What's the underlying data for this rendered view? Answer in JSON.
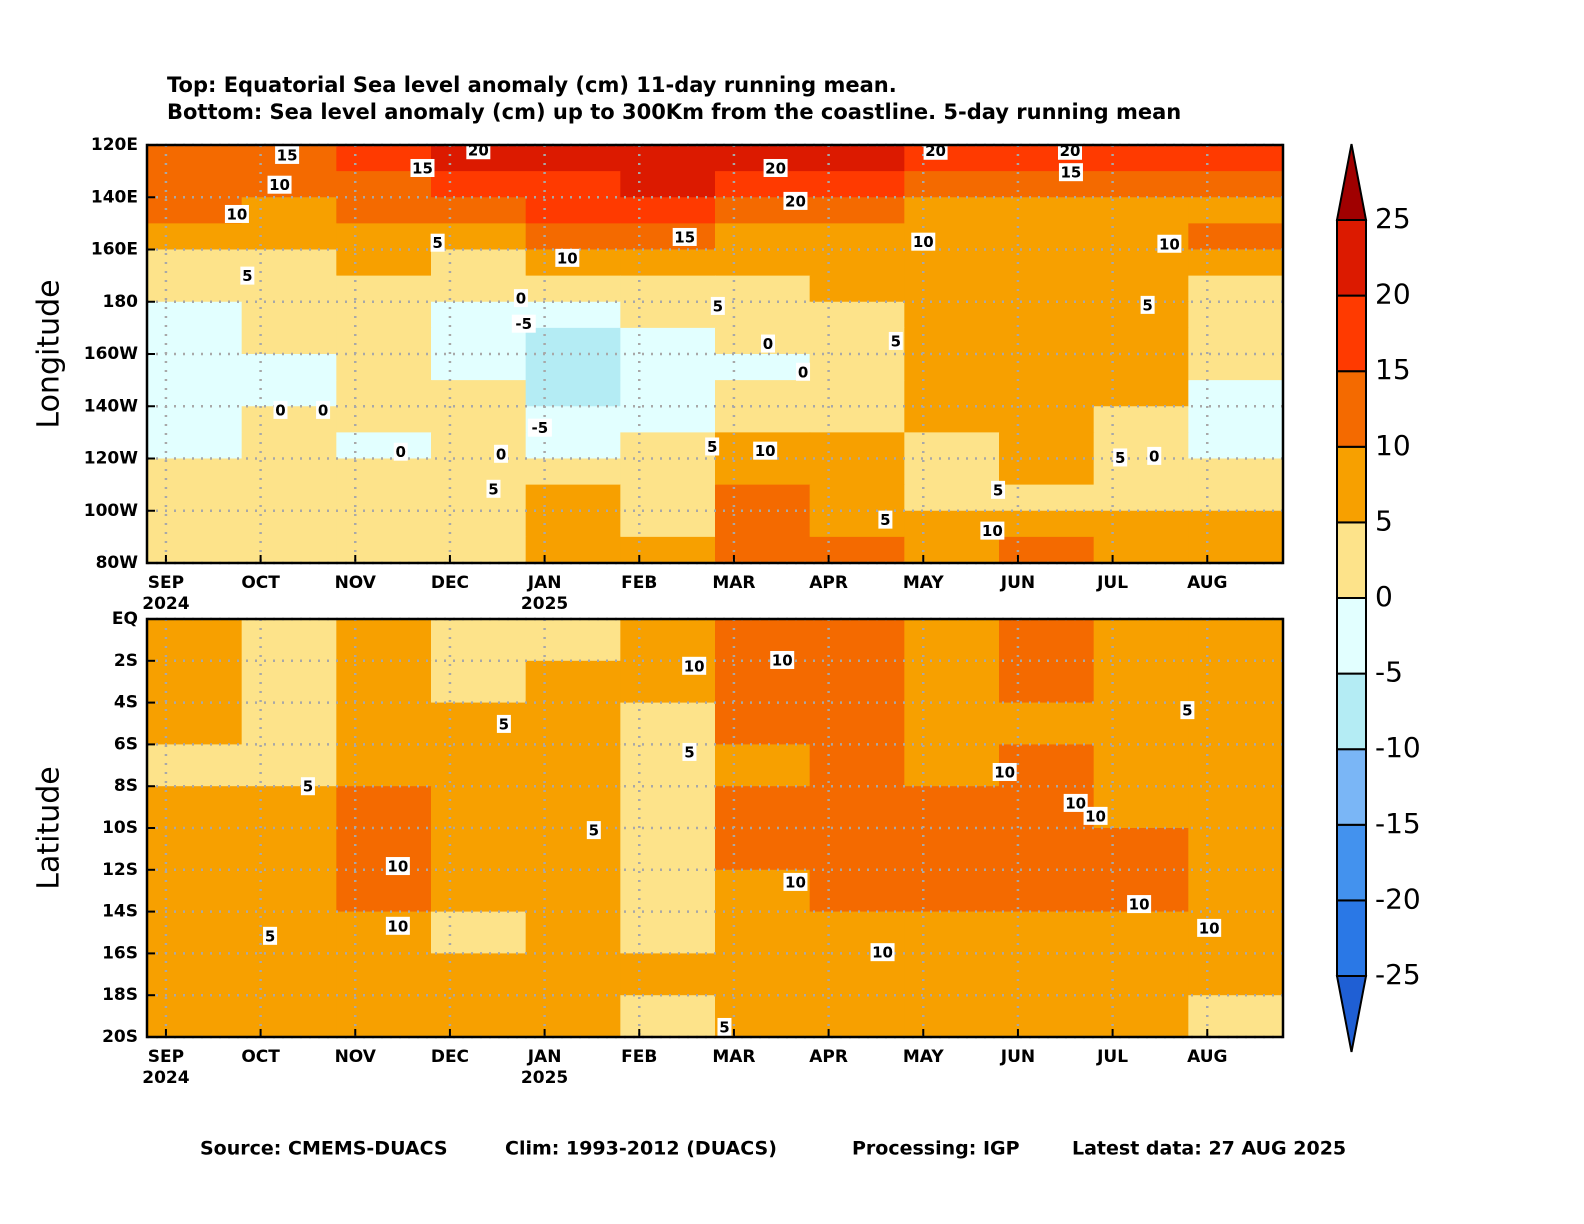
{
  "title_lines": [
    "Top: Equatorial Sea level anomaly (cm) 11-day running mean.",
    "Bottom: Sea level anomaly (cm) up to 300Km from the coastline. 5-day running mean"
  ],
  "footer": [
    "Source: CMEMS-DUACS",
    "Clim: 1993-2012 (DUACS)",
    "Processing: IGP",
    "Latest data: 27 AUG 2025"
  ],
  "chart_data": [
    {
      "type": "heatmap",
      "ylabel": "Longitude",
      "grid": true,
      "xlim": [
        -0.2,
        11.8
      ],
      "ylim": [
        0,
        8
      ],
      "xticks": [
        {
          "value": 0,
          "label": "SEP"
        },
        {
          "value": 1,
          "label": "OCT"
        },
        {
          "value": 2,
          "label": "NOV"
        },
        {
          "value": 3,
          "label": "DEC"
        },
        {
          "value": 4,
          "label": "JAN"
        },
        {
          "value": 5,
          "label": "FEB"
        },
        {
          "value": 6,
          "label": "MAR"
        },
        {
          "value": 7,
          "label": "APR"
        },
        {
          "value": 8,
          "label": "MAY"
        },
        {
          "value": 9,
          "label": "JUN"
        },
        {
          "value": 10,
          "label": "JUL"
        },
        {
          "value": 11,
          "label": "AUG"
        }
      ],
      "year_labels": [
        {
          "value": 0,
          "label": "2024"
        },
        {
          "value": 4,
          "label": "2025"
        }
      ],
      "yticks": [
        {
          "value": 0,
          "label": "120E"
        },
        {
          "value": 1,
          "label": "140E"
        },
        {
          "value": 2,
          "label": "160E"
        },
        {
          "value": 3,
          "label": "180"
        },
        {
          "value": 4,
          "label": "160W"
        },
        {
          "value": 5,
          "label": "140W"
        },
        {
          "value": 6,
          "label": "120W"
        },
        {
          "value": 7,
          "label": "100W"
        },
        {
          "value": 8,
          "label": "80W"
        }
      ],
      "x": [
        0.3,
        1.3,
        2.3,
        3.3,
        4.3,
        5.3,
        6.3,
        7.3,
        8.3,
        9.3,
        10.3,
        11.3
      ],
      "y": [
        0.25,
        0.75,
        1.25,
        1.75,
        2.25,
        2.75,
        3.25,
        3.75,
        4.25,
        4.75,
        5.25,
        5.75,
        6.25,
        6.75,
        7.25,
        7.75
      ],
      "values": [
        [
          14,
          13,
          15,
          20,
          21,
          22,
          21,
          20,
          18,
          17,
          17,
          17
        ],
        [
          11,
          10,
          12,
          15,
          19,
          20,
          18,
          15,
          12,
          12,
          13,
          12
        ],
        [
          12,
          9,
          11,
          12,
          15,
          16,
          14,
          10,
          9,
          9,
          8,
          9
        ],
        [
          7,
          7,
          8,
          8,
          11,
          10,
          9,
          9,
          8,
          8,
          8,
          10
        ],
        [
          3,
          4,
          6,
          4,
          7,
          8,
          6,
          7,
          8,
          8,
          8,
          5
        ],
        [
          3,
          3,
          4,
          2,
          2,
          4,
          4,
          6,
          7,
          8,
          7,
          4
        ],
        [
          -2,
          1,
          3,
          -1,
          -4,
          1,
          2,
          4,
          6,
          8,
          6,
          4
        ],
        [
          -3,
          1,
          2,
          -2,
          -6,
          -2,
          0,
          2,
          5,
          7,
          6,
          3
        ],
        [
          -3,
          -1,
          2,
          -1,
          -7,
          -3,
          -1,
          2,
          5,
          7,
          5,
          2
        ],
        [
          -4,
          -2,
          1,
          0,
          -6,
          -2,
          2,
          3,
          5,
          7,
          5,
          -2
        ],
        [
          -3,
          0,
          1,
          2,
          -5,
          -1,
          3,
          4,
          5,
          6,
          4,
          -3
        ],
        [
          -1,
          1,
          -1,
          2,
          -2,
          2,
          5,
          6,
          4,
          6,
          4,
          -1
        ],
        [
          2,
          3,
          2,
          3,
          3,
          3,
          8,
          9,
          4,
          5,
          4,
          2
        ],
        [
          2,
          3,
          3,
          4,
          5,
          4,
          10,
          8,
          4,
          4,
          4,
          3
        ],
        [
          2,
          3,
          4,
          4,
          5,
          4,
          11,
          9,
          5,
          7,
          6,
          5
        ],
        [
          3,
          3,
          4,
          4,
          5,
          5,
          11,
          12,
          7,
          10,
          8,
          6
        ]
      ],
      "contour_labels": [
        {
          "x": 1.28,
          "y": 0.19,
          "value": 15
        },
        {
          "x": 1.2,
          "y": 0.76,
          "value": 10
        },
        {
          "x": 0.75,
          "y": 1.32,
          "value": 10
        },
        {
          "x": 2.71,
          "y": 0.44,
          "value": 15
        },
        {
          "x": 3.3,
          "y": 0.1,
          "value": 20
        },
        {
          "x": 6.44,
          "y": 0.44,
          "value": 20
        },
        {
          "x": 6.65,
          "y": 1.07,
          "value": 20
        },
        {
          "x": 5.48,
          "y": 1.76,
          "value": 15
        },
        {
          "x": 4.24,
          "y": 2.16,
          "value": 10
        },
        {
          "x": 2.87,
          "y": 1.87,
          "value": 5
        },
        {
          "x": 0.86,
          "y": 2.5,
          "value": 5
        },
        {
          "x": 3.75,
          "y": 2.93,
          "value": 0
        },
        {
          "x": 3.78,
          "y": 3.42,
          "value": -5
        },
        {
          "x": 6.36,
          "y": 3.8,
          "value": 0
        },
        {
          "x": 6.73,
          "y": 4.34,
          "value": 0
        },
        {
          "x": 5.83,
          "y": 3.08,
          "value": 5
        },
        {
          "x": 7.71,
          "y": 3.75,
          "value": 5
        },
        {
          "x": 8.0,
          "y": 1.85,
          "value": 10
        },
        {
          "x": 10.6,
          "y": 1.89,
          "value": 10
        },
        {
          "x": 10.37,
          "y": 3.06,
          "value": 5
        },
        {
          "x": 1.21,
          "y": 5.07,
          "value": 0
        },
        {
          "x": 1.66,
          "y": 5.07,
          "value": 0
        },
        {
          "x": 2.48,
          "y": 5.87,
          "value": 0
        },
        {
          "x": 3.54,
          "y": 5.91,
          "value": 0
        },
        {
          "x": 3.95,
          "y": 5.41,
          "value": -5
        },
        {
          "x": 5.77,
          "y": 5.77,
          "value": 5
        },
        {
          "x": 6.33,
          "y": 5.85,
          "value": 10
        },
        {
          "x": 3.46,
          "y": 6.58,
          "value": 5
        },
        {
          "x": 7.6,
          "y": 7.17,
          "value": 5
        },
        {
          "x": 8.79,
          "y": 6.6,
          "value": 5
        },
        {
          "x": 8.73,
          "y": 7.38,
          "value": 10
        },
        {
          "x": 10.08,
          "y": 5.98,
          "value": 5
        },
        {
          "x": 10.44,
          "y": 5.95,
          "value": 0
        },
        {
          "x": 8.13,
          "y": 0.11,
          "value": 20
        },
        {
          "x": 9.55,
          "y": 0.11,
          "value": 20
        },
        {
          "x": 9.56,
          "y": 0.52,
          "value": 15
        }
      ]
    },
    {
      "type": "heatmap",
      "ylabel": "Latitude",
      "grid": true,
      "xlim": [
        -0.2,
        11.8
      ],
      "ylim": [
        0,
        10
      ],
      "xticks": [
        {
          "value": 0,
          "label": "SEP"
        },
        {
          "value": 1,
          "label": "OCT"
        },
        {
          "value": 2,
          "label": "NOV"
        },
        {
          "value": 3,
          "label": "DEC"
        },
        {
          "value": 4,
          "label": "JAN"
        },
        {
          "value": 5,
          "label": "FEB"
        },
        {
          "value": 6,
          "label": "MAR"
        },
        {
          "value": 7,
          "label": "APR"
        },
        {
          "value": 8,
          "label": "MAY"
        },
        {
          "value": 9,
          "label": "JUN"
        },
        {
          "value": 10,
          "label": "JUL"
        },
        {
          "value": 11,
          "label": "AUG"
        }
      ],
      "year_labels": [
        {
          "value": 0,
          "label": "2024"
        },
        {
          "value": 4,
          "label": "2025"
        }
      ],
      "yticks": [
        {
          "value": 0,
          "label": "EQ"
        },
        {
          "value": 1,
          "label": "2S"
        },
        {
          "value": 2,
          "label": "4S"
        },
        {
          "value": 3,
          "label": "6S"
        },
        {
          "value": 4,
          "label": "8S"
        },
        {
          "value": 5,
          "label": "10S"
        },
        {
          "value": 6,
          "label": "12S"
        },
        {
          "value": 7,
          "label": "14S"
        },
        {
          "value": 8,
          "label": "16S"
        },
        {
          "value": 9,
          "label": "18S"
        },
        {
          "value": 10,
          "label": "20S"
        }
      ],
      "x": [
        0.3,
        1.3,
        2.3,
        3.3,
        4.3,
        5.3,
        6.3,
        7.3,
        8.3,
        9.3,
        10.3,
        11.3
      ],
      "y": [
        0.5,
        1.5,
        2.5,
        3.5,
        4.5,
        5.5,
        6.5,
        7.5,
        8.5,
        9.5
      ],
      "values": [
        [
          7,
          3,
          6,
          3,
          4,
          7,
          12,
          13,
          9,
          11,
          8,
          6
        ],
        [
          7,
          4,
          5,
          4,
          6,
          5,
          11,
          12,
          9,
          11,
          8,
          6
        ],
        [
          6,
          3,
          5,
          6,
          7,
          4,
          10,
          11,
          9,
          9,
          8,
          7
        ],
        [
          4,
          4,
          5,
          7,
          6,
          3,
          9,
          11,
          9,
          10,
          8,
          6
        ],
        [
          9,
          7,
          10,
          7,
          7,
          4,
          10,
          11,
          11,
          11,
          9,
          8
        ],
        [
          8,
          5,
          10,
          7,
          8,
          3,
          10,
          11,
          11,
          11,
          10,
          8
        ],
        [
          9,
          7,
          10,
          6,
          7,
          4,
          9,
          11,
          11,
          11,
          11,
          9
        ],
        [
          5,
          5,
          6,
          4,
          7,
          4,
          7,
          9,
          9,
          9,
          9,
          8
        ],
        [
          8,
          7,
          8,
          7,
          7,
          5,
          7,
          8,
          7,
          8,
          7,
          7
        ],
        [
          6,
          6,
          8,
          6,
          6,
          4,
          6,
          7,
          7,
          7,
          6,
          4
        ]
      ],
      "contour_labels": [
        {
          "x": 5.58,
          "y": 1.12,
          "value": 10
        },
        {
          "x": 6.51,
          "y": 0.98,
          "value": 10
        },
        {
          "x": 3.57,
          "y": 2.51,
          "value": 5
        },
        {
          "x": 5.53,
          "y": 3.18,
          "value": 5
        },
        {
          "x": 1.5,
          "y": 4.0,
          "value": 5
        },
        {
          "x": 8.86,
          "y": 3.66,
          "value": 10
        },
        {
          "x": 9.61,
          "y": 4.4,
          "value": 10
        },
        {
          "x": 9.82,
          "y": 4.71,
          "value": 10
        },
        {
          "x": 4.52,
          "y": 5.05,
          "value": 5
        },
        {
          "x": 2.45,
          "y": 5.91,
          "value": 10
        },
        {
          "x": 6.65,
          "y": 6.29,
          "value": 10
        },
        {
          "x": 2.45,
          "y": 7.34,
          "value": 10
        },
        {
          "x": 1.1,
          "y": 7.58,
          "value": 5
        },
        {
          "x": 7.57,
          "y": 7.97,
          "value": 10
        },
        {
          "x": 10.28,
          "y": 6.82,
          "value": 10
        },
        {
          "x": 11.02,
          "y": 7.39,
          "value": 10
        },
        {
          "x": 10.79,
          "y": 2.18,
          "value": 5
        },
        {
          "x": 5.9,
          "y": 9.76,
          "value": 5
        }
      ]
    },
    {
      "type": "colorbar",
      "levels": [
        -25,
        -20,
        -15,
        -10,
        -5,
        0,
        5,
        10,
        15,
        20,
        25
      ],
      "colors": [
        "#1f5fd4",
        "#2a78e6",
        "#4392ee",
        "#7ab6f6",
        "#b4ecf4",
        "#e2ffff",
        "#fde38a",
        "#f7a000",
        "#f46a00",
        "#ff3a00",
        "#dc1a00",
        "#a00000"
      ]
    }
  ]
}
